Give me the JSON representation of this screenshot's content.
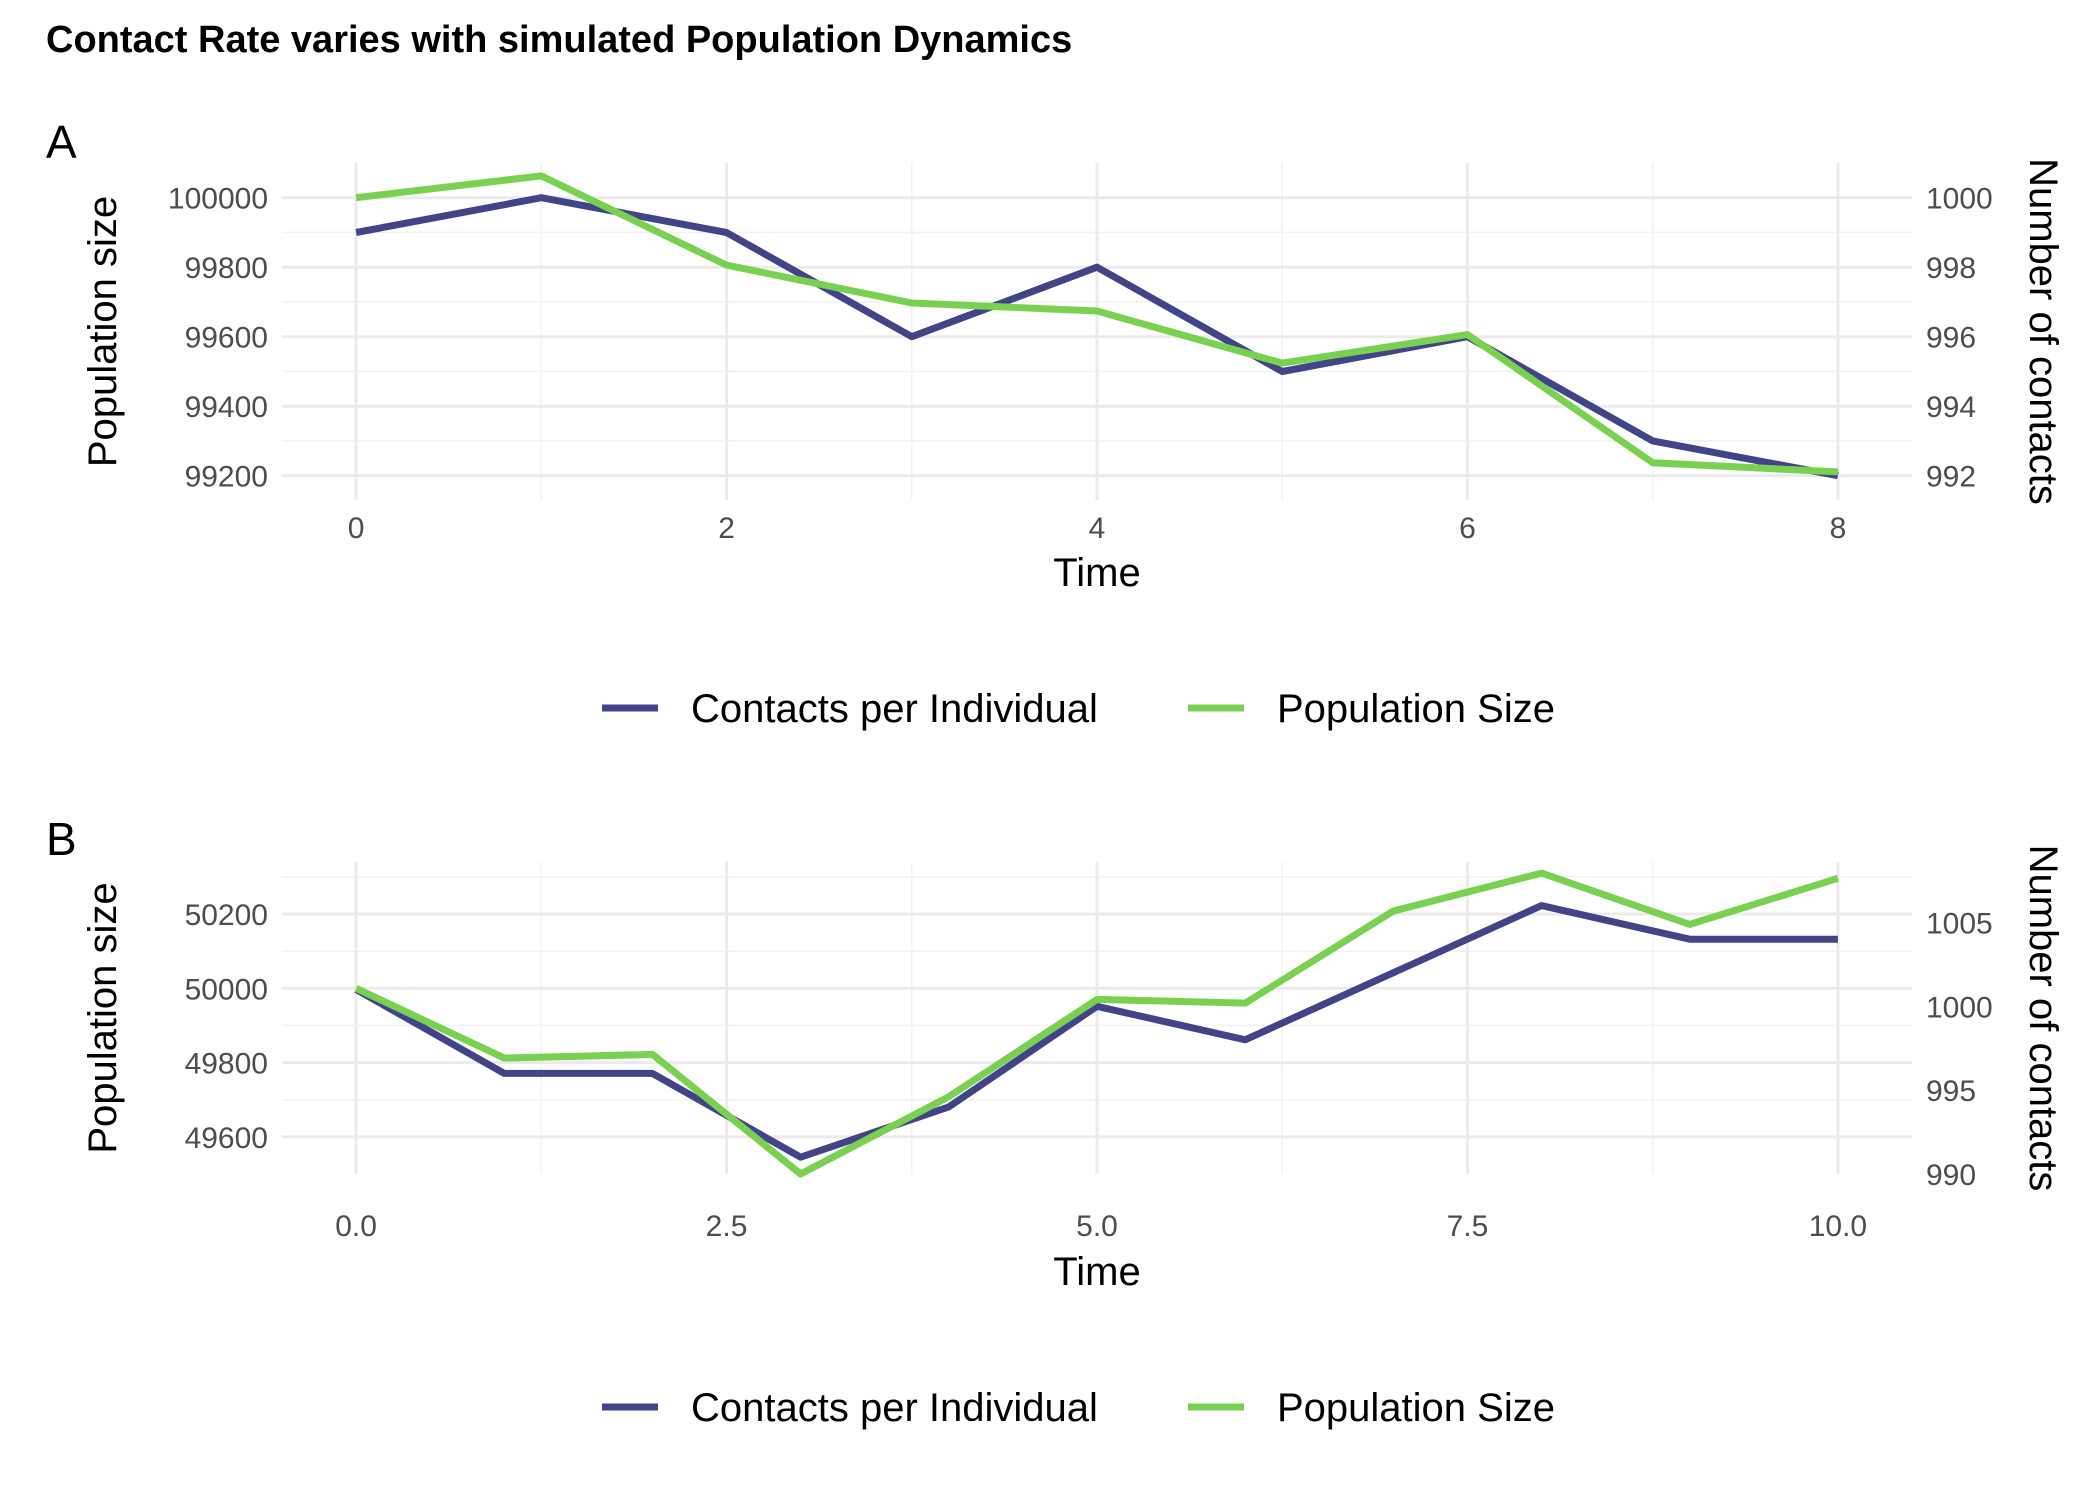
{
  "title": "Contact Rate varies with simulated Population Dynamics",
  "colors": {
    "contacts": "#414487",
    "population": "#7AD151"
  },
  "legend": {
    "position": "bottom",
    "entries": [
      "Contacts per Individual",
      "Population Size"
    ]
  },
  "chart_data": [
    {
      "type": "line",
      "panel_tag": "A",
      "xlabel": "Time",
      "ylabel_left": "Population size",
      "ylabel_right": "Number of contacts",
      "xlim": [
        -0.4,
        8.4
      ],
      "x_ticks": [
        0,
        2,
        4,
        6,
        8
      ],
      "x_tick_labels": [
        "0",
        "2",
        "4",
        "6",
        "8"
      ],
      "ylim_left": [
        99130,
        100100
      ],
      "y_ticks_left": [
        99200,
        99400,
        99600,
        99800,
        100000
      ],
      "y_tick_labels_left": [
        "99200",
        "99400",
        "99600",
        "99800",
        "100000"
      ],
      "ylim_right": [
        991.3,
        1001
      ],
      "y_ticks_right": [
        992,
        994,
        996,
        998,
        1000
      ],
      "y_tick_labels_right": [
        "992",
        "994",
        "996",
        "998",
        "1000"
      ],
      "grid": true,
      "x": [
        0,
        1,
        2,
        3,
        4,
        5,
        6,
        7,
        8
      ],
      "series": [
        {
          "name": "Contacts per Individual",
          "axis": "right",
          "color": "#414487",
          "values": [
            999,
            1000,
            999,
            996,
            998,
            995,
            996,
            993,
            992
          ]
        },
        {
          "name": "Population Size",
          "axis": "left",
          "color": "#7AD151",
          "values": [
            100000,
            100063,
            99806,
            99697,
            99674,
            99524,
            99606,
            99237,
            99211
          ]
        }
      ]
    },
    {
      "type": "line",
      "panel_tag": "B",
      "xlabel": "Time",
      "ylabel_left": "Population size",
      "ylabel_right": "Number of contacts",
      "xlim": [
        -0.5,
        10.5
      ],
      "x_ticks": [
        0,
        2.5,
        5,
        7.5,
        10
      ],
      "x_tick_labels": [
        "0.0",
        "2.5",
        "5.0",
        "7.5",
        "10.0"
      ],
      "ylim_left": [
        49500,
        50340
      ],
      "y_ticks_left": [
        49600,
        49800,
        50000,
        50200
      ],
      "y_tick_labels_left": [
        "49600",
        "49800",
        "50000",
        "50200"
      ],
      "ylim_right": [
        990,
        1008.6
      ],
      "y_ticks_right": [
        990,
        995,
        1000,
        1005
      ],
      "y_tick_labels_right": [
        "990",
        "995",
        "1000",
        "1005"
      ],
      "grid": true,
      "x": [
        0,
        1,
        2,
        3,
        4,
        5,
        6,
        7,
        8,
        9,
        10
      ],
      "series": [
        {
          "name": "Contacts per Individual",
          "axis": "right",
          "color": "#414487",
          "values": [
            1001,
            996,
            996,
            991,
            994,
            1000,
            998,
            1002,
            1006,
            1004,
            1004
          ]
        },
        {
          "name": "Population Size",
          "axis": "left",
          "color": "#7AD151",
          "values": [
            50000,
            49812,
            49822,
            49500,
            49708,
            49970,
            49960,
            50208,
            50310,
            50172,
            50296
          ]
        }
      ]
    }
  ]
}
